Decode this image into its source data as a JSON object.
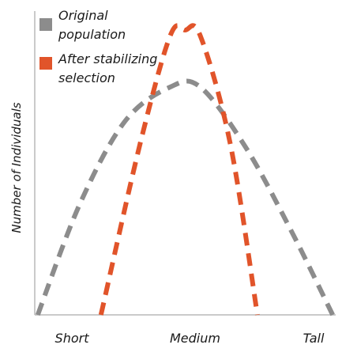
{
  "chart_data": {
    "type": "line",
    "title": "",
    "xlabel": "",
    "ylabel": "Number of Individuals",
    "categories": [
      "Short",
      "Medium",
      "Tall"
    ],
    "x_range": [
      0,
      100
    ],
    "y_range": [
      0,
      100
    ],
    "grid": false,
    "legend_position": "top-left",
    "series": [
      {
        "name": "Original population",
        "color": "#8c8c8c",
        "line_style": "dashed",
        "x": [
          1,
          15,
          30,
          45,
          55,
          70,
          85,
          99
        ],
        "y": [
          0,
          39,
          68,
          80,
          80,
          59,
          30,
          0
        ]
      },
      {
        "name": "After stabilizing selection",
        "color": "#e1542a",
        "line_style": "dashed",
        "x": [
          22,
          35,
          45,
          50,
          55,
          65,
          74
        ],
        "y": [
          0,
          60,
          98,
          100,
          98,
          60,
          0
        ]
      }
    ],
    "legend": [
      {
        "line1": "Original",
        "line2": "population",
        "color": "#8c8c8c"
      },
      {
        "line1": "After stabilizing",
        "line2": "selection",
        "color": "#e1542a"
      }
    ]
  }
}
